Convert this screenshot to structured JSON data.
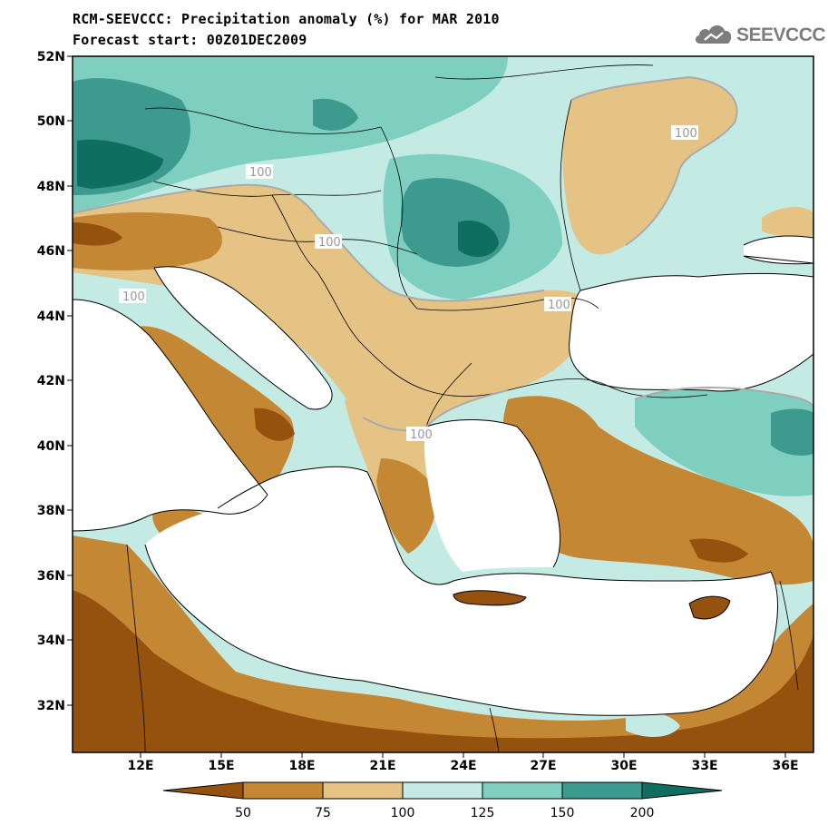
{
  "header": {
    "title_line1": "RCM-SEEVCCC: Precipitation anomaly (%) for MAR 2010",
    "title_line2": "Forecast start: 00Z01DEC2009"
  },
  "logo": {
    "text": "SEEVCCC",
    "icon": "cloud-icon"
  },
  "map": {
    "lat_labels": [
      "52N",
      "50N",
      "48N",
      "46N",
      "44N",
      "42N",
      "40N",
      "38N",
      "36N",
      "34N",
      "32N"
    ],
    "lon_labels": [
      "12E",
      "15E",
      "18E",
      "21E",
      "24E",
      "27E",
      "30E",
      "33E",
      "36E"
    ],
    "contour_label": "100"
  },
  "colorbar": {
    "labels": [
      "50",
      "75",
      "100",
      "125",
      "150",
      "200"
    ],
    "colors": [
      "#95520f",
      "#c48733",
      "#e4c385",
      "#c4eae4",
      "#7fcfc0",
      "#3c9a8e",
      "#0e6e5f"
    ]
  },
  "colors": {
    "sea": "#ffffff",
    "contour": "#aaaaaa",
    "border": "#000000"
  }
}
